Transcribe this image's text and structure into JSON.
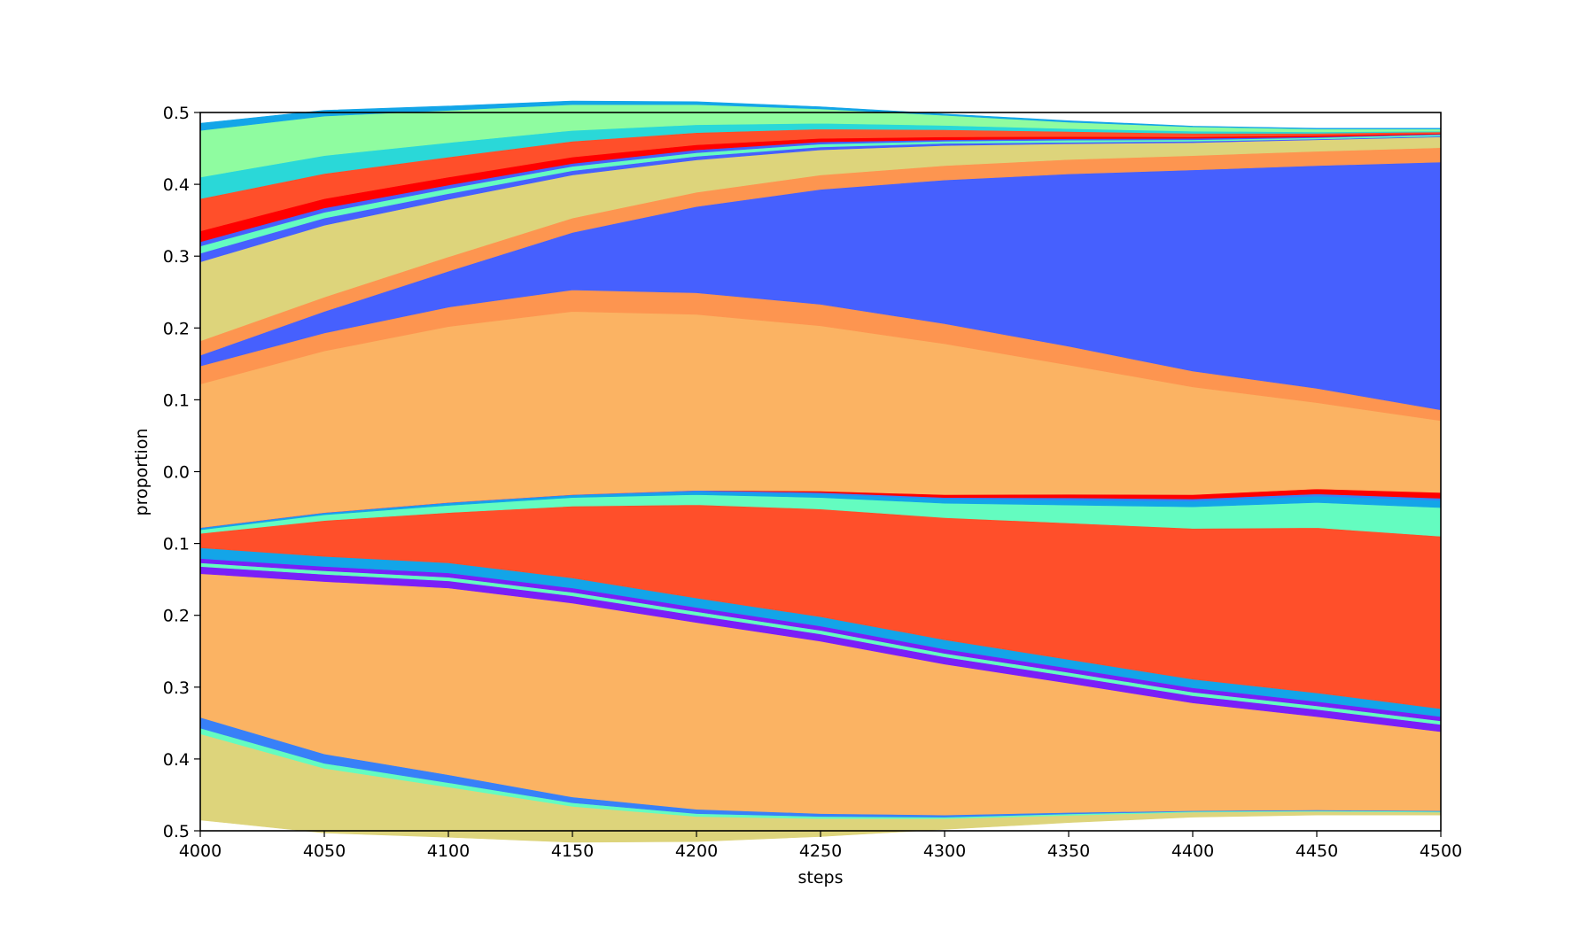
{
  "chart_data": {
    "type": "area",
    "title": "",
    "xlabel": "steps",
    "ylabel": "proportion",
    "xlim": [
      4000,
      4500
    ],
    "ylim": [
      -0.5,
      0.5
    ],
    "grid": false,
    "legend": "none",
    "x_ticks": [
      4000,
      4050,
      4100,
      4150,
      4200,
      4250,
      4300,
      4350,
      4400,
      4450,
      4500
    ],
    "y_ticks": [
      0.5,
      0.4,
      0.3,
      0.2,
      0.1,
      0.0,
      -0.1,
      -0.2,
      -0.3,
      -0.4,
      -0.5
    ],
    "y_tick_labels": [
      "0.5",
      "0.4",
      "0.3",
      "0.2",
      "0.1",
      "0.0",
      "0.1",
      "0.2",
      "0.3",
      "0.4",
      "0.5"
    ],
    "x": [
      4000,
      4050,
      4100,
      4150,
      4200,
      4250,
      4300,
      4350,
      4400,
      4450,
      4500
    ],
    "series": [
      {
        "color": "#ddd47b",
        "values": [
          0.12,
          0.09,
          0.07,
          0.05,
          0.035,
          0.025,
          0.015,
          0.01,
          0.007,
          0.005,
          0.004
        ]
      },
      {
        "color": "#64fcc0",
        "values": [
          0.008,
          0.007,
          0.006,
          0.005,
          0.004,
          0.003,
          0.002,
          0.002,
          0.001,
          0.001,
          0.001
        ]
      },
      {
        "color": "#3880f8",
        "values": [
          0.015,
          0.013,
          0.011,
          0.008,
          0.006,
          0.004,
          0.003,
          0.002,
          0.001,
          0.001,
          0.001
        ]
      },
      {
        "color": "#fbb363",
        "values": [
          0.2,
          0.24,
          0.26,
          0.27,
          0.26,
          0.24,
          0.21,
          0.18,
          0.15,
          0.13,
          0.11
        ]
      },
      {
        "color": "#7a1ff8",
        "values": [
          0.01,
          0.01,
          0.01,
          0.01,
          0.01,
          0.01,
          0.01,
          0.01,
          0.01,
          0.01,
          0.01
        ]
      },
      {
        "color": "#64fcc0",
        "values": [
          0.005,
          0.005,
          0.005,
          0.005,
          0.005,
          0.005,
          0.005,
          0.005,
          0.005,
          0.005,
          0.005
        ]
      },
      {
        "color": "#7a1ff8",
        "values": [
          0.006,
          0.006,
          0.006,
          0.006,
          0.006,
          0.006,
          0.006,
          0.006,
          0.006,
          0.006,
          0.006
        ]
      },
      {
        "color": "#13a5e8",
        "values": [
          0.015,
          0.014,
          0.014,
          0.014,
          0.013,
          0.013,
          0.013,
          0.012,
          0.012,
          0.012,
          0.011
        ]
      },
      {
        "color": "#ff4f2a",
        "values": [
          0.02,
          0.05,
          0.07,
          0.1,
          0.13,
          0.15,
          0.17,
          0.19,
          0.21,
          0.23,
          0.24
        ]
      },
      {
        "color": "#64fcc0",
        "values": [
          0.005,
          0.008,
          0.01,
          0.012,
          0.014,
          0.016,
          0.02,
          0.025,
          0.03,
          0.035,
          0.04
        ]
      },
      {
        "color": "#13a5e8",
        "values": [
          0.002,
          0.002,
          0.003,
          0.003,
          0.004,
          0.005,
          0.006,
          0.007,
          0.008,
          0.009,
          0.01
        ]
      },
      {
        "color": "#3880f8",
        "values": [
          0.001,
          0.001,
          0.001,
          0.001,
          0.002,
          0.002,
          0.002,
          0.003,
          0.003,
          0.003,
          0.003
        ]
      },
      {
        "color": "#ff0000",
        "values": [
          0.0,
          0.0,
          0.0,
          0.0,
          0.0,
          0.002,
          0.004,
          0.005,
          0.006,
          0.007,
          0.008
        ]
      },
      {
        "color": "#fbb363",
        "values": [
          0.2,
          0.225,
          0.245,
          0.255,
          0.245,
          0.23,
          0.21,
          0.18,
          0.15,
          0.12,
          0.1
        ]
      },
      {
        "color": "#fd9550",
        "values": [
          0.025,
          0.025,
          0.027,
          0.03,
          0.03,
          0.03,
          0.028,
          0.026,
          0.022,
          0.02,
          0.015
        ]
      },
      {
        "color": "#4660fe",
        "values": [
          0.015,
          0.03,
          0.05,
          0.08,
          0.12,
          0.16,
          0.2,
          0.24,
          0.28,
          0.31,
          0.345
        ]
      },
      {
        "color": "#fd9550",
        "values": [
          0.02,
          0.02,
          0.02,
          0.02,
          0.02,
          0.02,
          0.02,
          0.02,
          0.02,
          0.02,
          0.02
        ]
      },
      {
        "color": "#ddd47b",
        "values": [
          0.11,
          0.1,
          0.08,
          0.06,
          0.045,
          0.035,
          0.028,
          0.022,
          0.018,
          0.016,
          0.015
        ]
      },
      {
        "color": "#4660fe",
        "values": [
          0.012,
          0.01,
          0.008,
          0.006,
          0.005,
          0.004,
          0.003,
          0.002,
          0.002,
          0.001,
          0.001
        ]
      },
      {
        "color": "#64fcc0",
        "values": [
          0.01,
          0.008,
          0.007,
          0.006,
          0.005,
          0.004,
          0.003,
          0.003,
          0.002,
          0.002,
          0.002
        ]
      },
      {
        "color": "#4660fe",
        "values": [
          0.006,
          0.006,
          0.005,
          0.004,
          0.004,
          0.003,
          0.002,
          0.002,
          0.002,
          0.001,
          0.001
        ]
      },
      {
        "color": "#ff0000",
        "values": [
          0.015,
          0.013,
          0.011,
          0.009,
          0.007,
          0.005,
          0.004,
          0.003,
          0.002,
          0.002,
          0.001
        ]
      },
      {
        "color": "#ff4f2a",
        "values": [
          0.045,
          0.035,
          0.028,
          0.022,
          0.017,
          0.013,
          0.01,
          0.007,
          0.005,
          0.003,
          0.002
        ]
      },
      {
        "color": "#2ad8d8",
        "values": [
          0.03,
          0.025,
          0.02,
          0.015,
          0.011,
          0.008,
          0.006,
          0.004,
          0.003,
          0.002,
          0.001
        ]
      },
      {
        "color": "#8ffca0",
        "values": [
          0.065,
          0.055,
          0.045,
          0.036,
          0.028,
          0.02,
          0.014,
          0.009,
          0.006,
          0.004,
          0.003
        ]
      },
      {
        "color": "#13a5e8",
        "values": [
          0.01,
          0.008,
          0.006,
          0.005,
          0.004,
          0.003,
          0.002,
          0.002,
          0.001,
          0.001,
          0.001
        ]
      }
    ]
  }
}
